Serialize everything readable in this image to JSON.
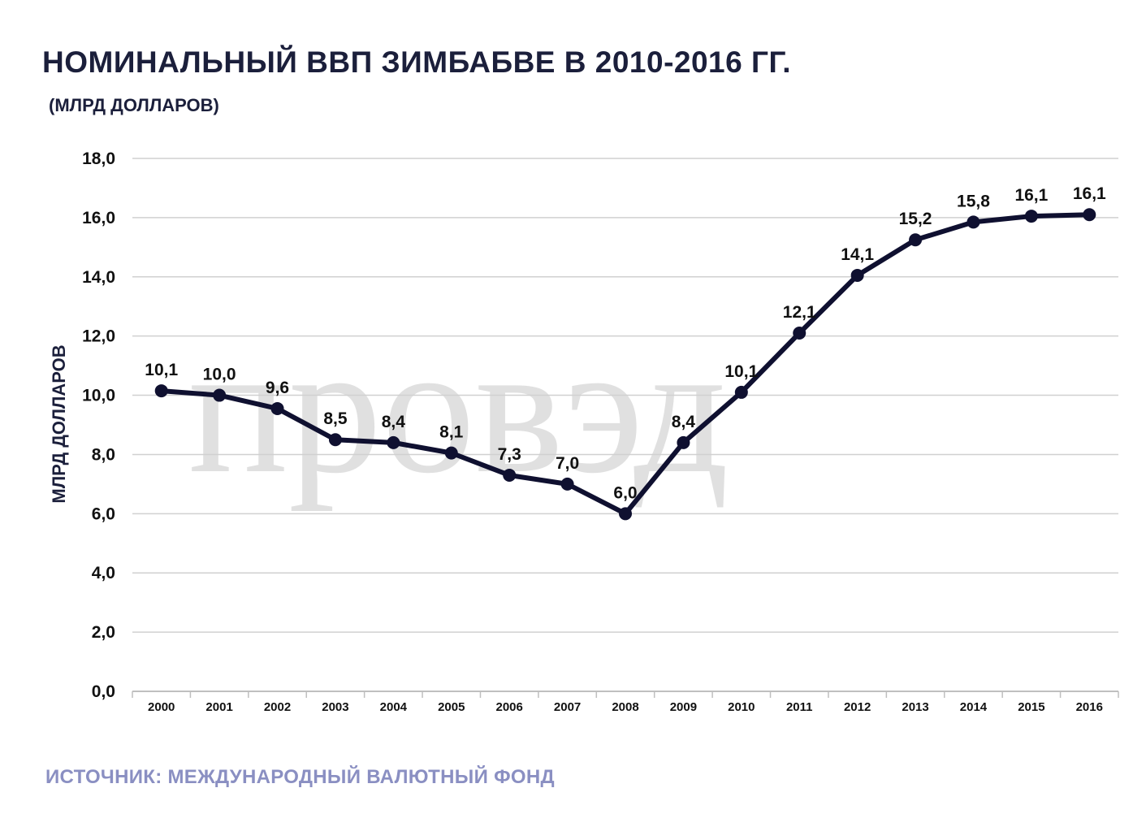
{
  "title": "НОМИНАЛЬНЫЙ ВВП ЗИМБАБВЕ В 2010-2016 ГГ.",
  "subtitle": "(МЛРД ДОЛЛАРОВ)",
  "source": "ИСТОЧНИК:  МЕЖДУНАРОДНЫЙ ВАЛЮТНЫЙ ФОНД",
  "watermark": "провэд",
  "colors": {
    "line": "#0f1030",
    "grid": "#d0d0d0",
    "title": "#1b1f3b",
    "source": "#8a8fc2",
    "watermark": "#c8c8c8"
  },
  "chart_data": {
    "type": "line",
    "title": "НОМИНАЛЬНЫЙ ВВП ЗИМБАБВЕ В 2010-2016 ГГ.",
    "ylabel": "МЛРД ДОЛЛАРОВ",
    "xlabel": "",
    "ylim": [
      0,
      18
    ],
    "yticks": [
      "0,0",
      "2,0",
      "4,0",
      "6,0",
      "8,0",
      "10,0",
      "12,0",
      "14,0",
      "16,0",
      "18,0"
    ],
    "grid": true,
    "categories": [
      "2000",
      "2001",
      "2002",
      "2003",
      "2004",
      "2005",
      "2006",
      "2007",
      "2008",
      "2009",
      "2010",
      "2011",
      "2012",
      "2013",
      "2014",
      "2015",
      "2016"
    ],
    "values": [
      10.15,
      10.0,
      9.55,
      8.5,
      8.4,
      8.05,
      7.3,
      7.0,
      6.0,
      8.4,
      10.1,
      12.1,
      14.05,
      15.25,
      15.85,
      16.05,
      16.1
    ],
    "data_labels": [
      "10,1",
      "10,0",
      "9,6",
      "8,5",
      "8,4",
      "8,1",
      "7,3",
      "7,0",
      "6,0",
      "8,4",
      "10,1",
      "12,1",
      "14,1",
      "15,2",
      "15,8",
      "16,1",
      "16,1"
    ]
  }
}
